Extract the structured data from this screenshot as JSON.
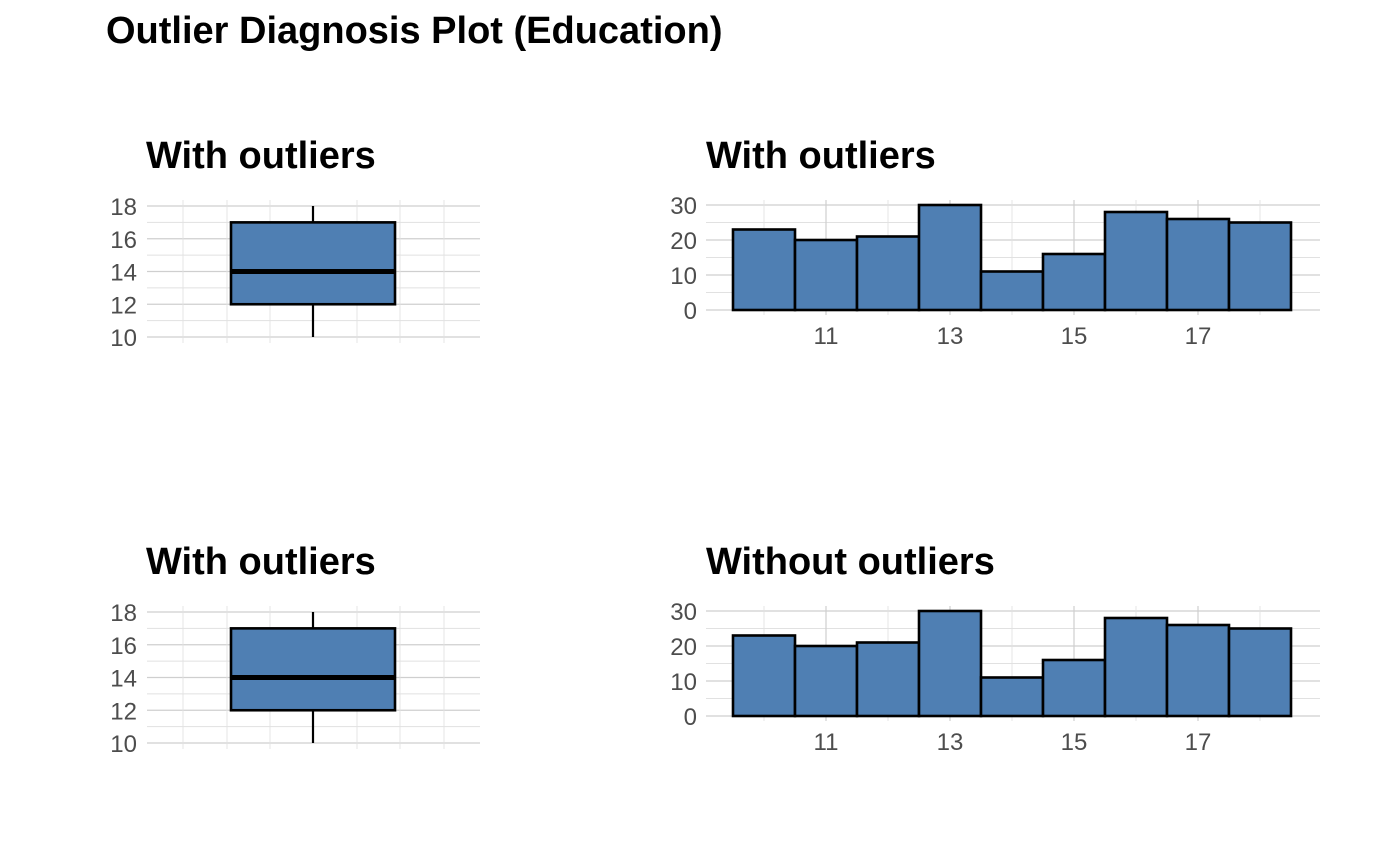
{
  "title": "Outlier Diagnosis Plot (Education)",
  "colors": {
    "fill": "#4f7fb3",
    "outline": "#000000",
    "text": "#000000",
    "tick": "#4d4d4d",
    "grid": "#cfcfcf"
  },
  "chart_data": [
    {
      "type": "boxplot",
      "title": "With outliers",
      "ylim": [
        10,
        18
      ],
      "yticks": [
        10,
        12,
        14,
        16,
        18
      ],
      "min": 10,
      "q1": 12,
      "median": 14,
      "q3": 17,
      "max": 18,
      "grid": true
    },
    {
      "type": "bar",
      "title": "With outliers",
      "bin_width": 1,
      "x": [
        10,
        11,
        12,
        13,
        14,
        15,
        16,
        17,
        18
      ],
      "values": [
        23,
        20,
        21,
        30,
        11,
        16,
        28,
        26,
        25
      ],
      "xticks": [
        11,
        13,
        15,
        17
      ],
      "yticks": [
        0,
        10,
        20,
        30
      ],
      "ylim": [
        0,
        30
      ],
      "grid": true
    },
    {
      "type": "boxplot",
      "title": "With outliers",
      "ylim": [
        10,
        18
      ],
      "yticks": [
        10,
        12,
        14,
        16,
        18
      ],
      "min": 10,
      "q1": 12,
      "median": 14,
      "q3": 17,
      "max": 18,
      "grid": true
    },
    {
      "type": "bar",
      "title": "Without outliers",
      "bin_width": 1,
      "x": [
        10,
        11,
        12,
        13,
        14,
        15,
        16,
        17,
        18
      ],
      "values": [
        23,
        20,
        21,
        30,
        11,
        16,
        28,
        26,
        25
      ],
      "xticks": [
        11,
        13,
        15,
        17
      ],
      "yticks": [
        0,
        10,
        20,
        30
      ],
      "ylim": [
        0,
        30
      ],
      "grid": true
    }
  ]
}
